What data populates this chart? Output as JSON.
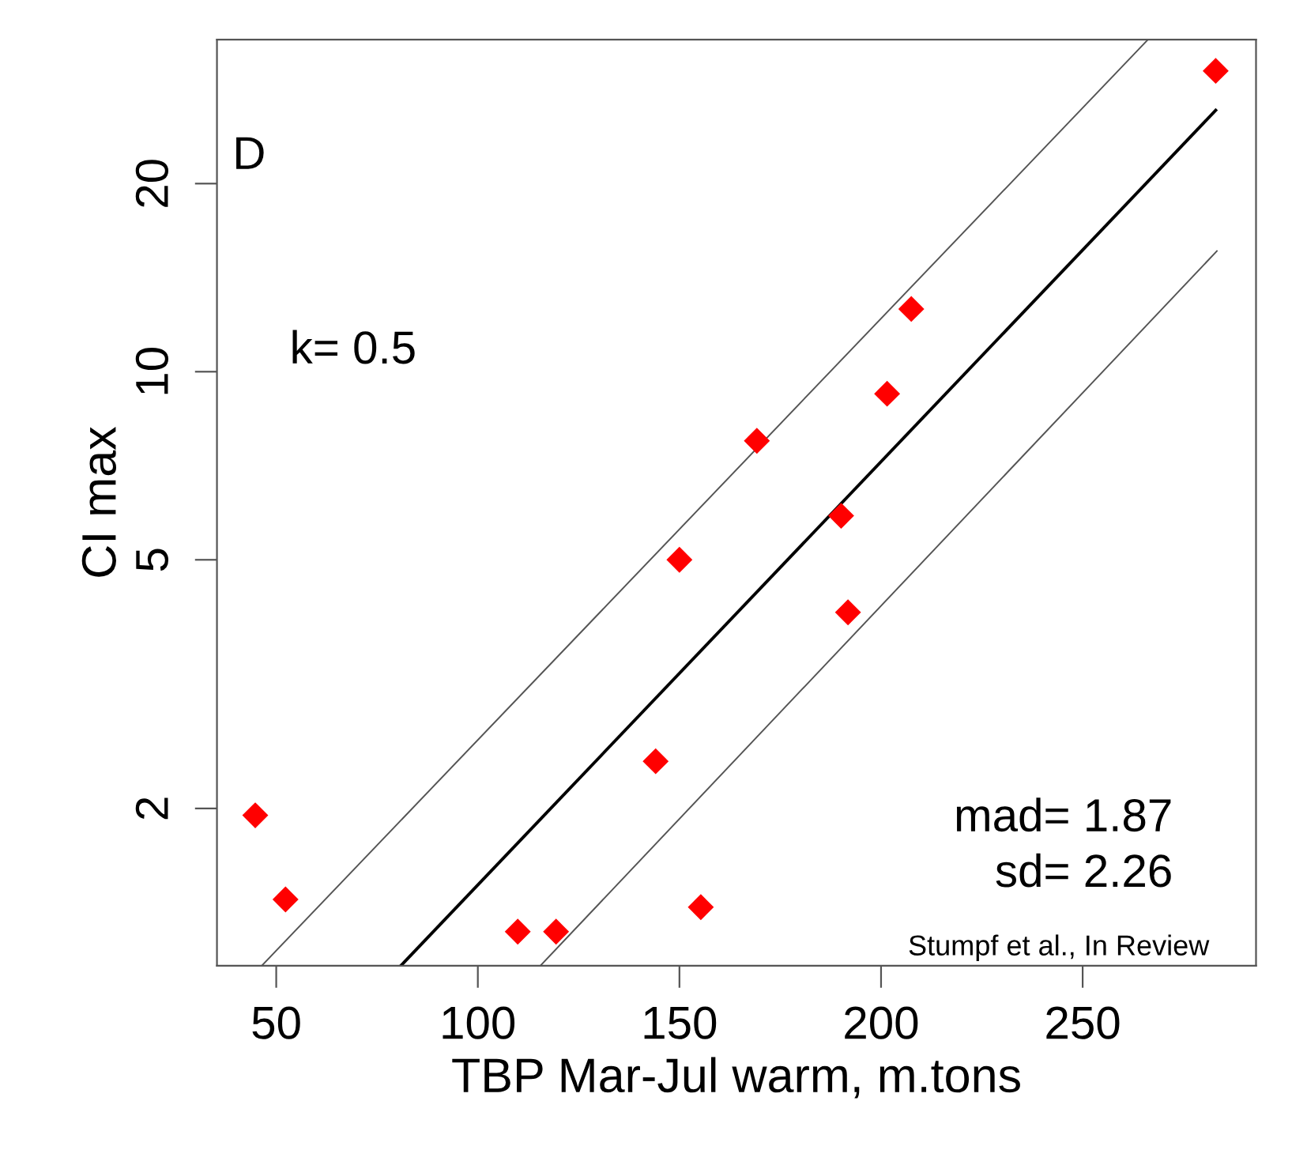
{
  "chart_data": {
    "type": "scatter",
    "xlabel": "TBP Mar-Jul warm, m.tons",
    "ylabel": "CI max",
    "log": "y",
    "grid": false,
    "legend": false,
    "xlim": [
      35.3,
      293
    ],
    "ylim": [
      1.12,
      34.0
    ],
    "xticks": [
      50,
      100,
      150,
      200,
      250
    ],
    "yticks": [
      2,
      5,
      10,
      20
    ],
    "annotations": [
      "D",
      "k= 0.5",
      "mad= 1.87",
      "sd= 2.26",
      "Stumpf et al., In Review"
    ],
    "series": [
      {
        "color": "#ff0000",
        "marker": "diamond",
        "x": [
          44.8,
          52.3,
          109.9,
          119.4,
          155.3,
          144.1,
          150,
          169.2,
          190.1,
          191.8,
          201.5,
          207.5,
          283
        ],
        "values": [
          1.95,
          1.43,
          1.27,
          1.27,
          1.39,
          2.38,
          5.0,
          7.75,
          5.88,
          4.12,
          9.22,
          12.6,
          30.3
        ]
      },
      {
        "type": "line",
        "color": "#000000",
        "x": [
          80.9,
          283
        ],
        "values": [
          1.12,
          26.2
        ]
      },
      {
        "type": "line",
        "color": "#555555",
        "x": [
          46.4,
          266.2
        ],
        "values": [
          1.12,
          34.0
        ]
      },
      {
        "type": "line",
        "color": "#555555",
        "x": [
          115.5,
          283.3
        ],
        "values": [
          1.12,
          15.6
        ]
      }
    ]
  }
}
